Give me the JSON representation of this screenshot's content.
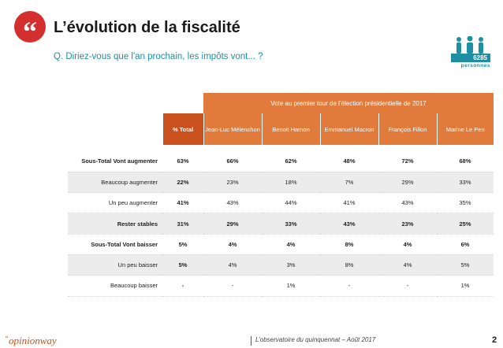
{
  "header": {
    "quote_mark": "“",
    "title": "L’évolution de la fiscalité",
    "question": "Q. Diriez-vous que l'an prochain, les impôts vont... ?"
  },
  "people": {
    "count": "6285",
    "label": "personnes",
    "icon": "people-icon"
  },
  "table": {
    "group_header": "Vote au premier tour de l’élection présidentielle de 2017",
    "columns": [
      "% Total",
      "Jean-Luc Mélenchon",
      "Benoit Hamon",
      "Emmanuel Macron",
      "François Fillon",
      "Marine Le Pen"
    ],
    "rows": [
      {
        "label": "Sous-Total Vont augmenter",
        "values": [
          "63%",
          "66%",
          "62%",
          "48%",
          "72%",
          "68%"
        ],
        "style": "bold"
      },
      {
        "label": "Beaucoup augmenter",
        "values": [
          "22%",
          "23%",
          "18%",
          "7%",
          "29%",
          "33%"
        ],
        "style": "shaded"
      },
      {
        "label": "Un peu augmenter",
        "values": [
          "41%",
          "43%",
          "44%",
          "41%",
          "43%",
          "35%"
        ],
        "style": "plain"
      },
      {
        "label": "Rester stables",
        "values": [
          "31%",
          "29%",
          "33%",
          "43%",
          "23%",
          "25%"
        ],
        "style": "bold-shaded"
      },
      {
        "label": "Sous-Total Vont baisser",
        "values": [
          "5%",
          "4%",
          "4%",
          "8%",
          "4%",
          "6%"
        ],
        "style": "bold"
      },
      {
        "label": "Un peu baisser",
        "values": [
          "5%",
          "4%",
          "3%",
          "8%",
          "4%",
          "5%"
        ],
        "style": "shaded"
      },
      {
        "label": "Beaucoup baisser",
        "values": [
          "-",
          "-",
          "1%",
          "-",
          "-",
          "1%"
        ],
        "style": "plain"
      }
    ]
  },
  "footer": {
    "logo_quote": "“",
    "logo_text": "opinion",
    "logo_text2": "way",
    "caption": "L’observatoire du quinquennat – Août 2017",
    "page_number": "2"
  },
  "colors": {
    "accent_orange": "#e07b3c",
    "accent_dark_orange": "#c8511e",
    "accent_teal": "#1f8fa3",
    "accent_red": "#d32f2f"
  }
}
